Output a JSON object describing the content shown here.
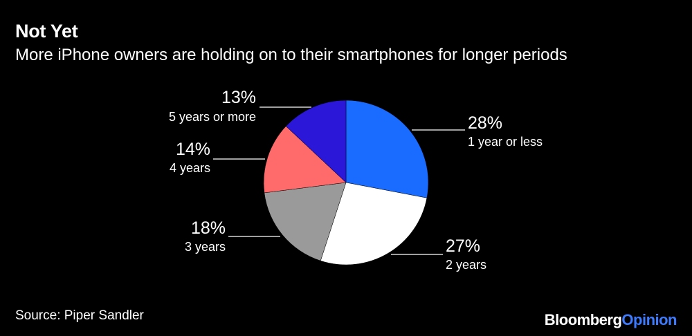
{
  "header": {
    "title": "Not Yet",
    "subtitle": "More iPhone owners are holding on to their smartphones for longer periods"
  },
  "footer": {
    "source": "Source: Piper Sandler",
    "brand_part1": "Bloomberg",
    "brand_part2": "Opinion"
  },
  "chart_data": {
    "type": "pie",
    "slices": [
      {
        "label": "1 year or less",
        "value": 28,
        "value_label": "28%",
        "color": "#1a6bff"
      },
      {
        "label": "2 years",
        "value": 27,
        "value_label": "27%",
        "color": "#ffffff"
      },
      {
        "label": "3 years",
        "value": 18,
        "value_label": "18%",
        "color": "#9a9a9a"
      },
      {
        "label": "4 years",
        "value": 14,
        "value_label": "14%",
        "color": "#ff6b6b"
      },
      {
        "label": "5 years or more",
        "value": 13,
        "value_label": "13%",
        "color": "#2a17d8"
      }
    ]
  }
}
